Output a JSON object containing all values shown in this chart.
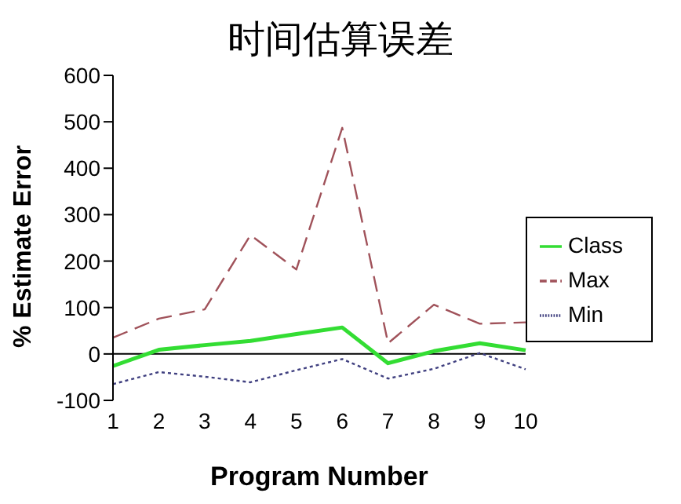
{
  "chart_data": {
    "type": "line",
    "title": "时间估算误差",
    "xlabel": "Program Number",
    "ylabel": "% Estimate Error",
    "categories": [
      "1",
      "2",
      "3",
      "4",
      "5",
      "6",
      "7",
      "8",
      "9",
      "10"
    ],
    "series": [
      {
        "name": "Max",
        "color": "#a0525a",
        "line_style": "dashed",
        "values": [
          35,
          76,
          96,
          256,
          182,
          487,
          23,
          106,
          65,
          68
        ]
      },
      {
        "name": "Class",
        "color": "#33dd33",
        "line_style": "solid",
        "values": [
          -26,
          9,
          19,
          28,
          43,
          57,
          -20,
          6,
          23,
          8
        ]
      },
      {
        "name": "Min",
        "color": "#404080",
        "line_style": "dotted",
        "values": [
          -65,
          -39,
          -49,
          -61,
          -35,
          -11,
          -53,
          -32,
          2,
          -33
        ]
      }
    ],
    "ylim": [
      -100,
      600
    ],
    "yticks": [
      -100,
      0,
      100,
      200,
      300,
      400,
      500,
      600
    ],
    "grid": false,
    "legend": "right",
    "marker": "none"
  }
}
